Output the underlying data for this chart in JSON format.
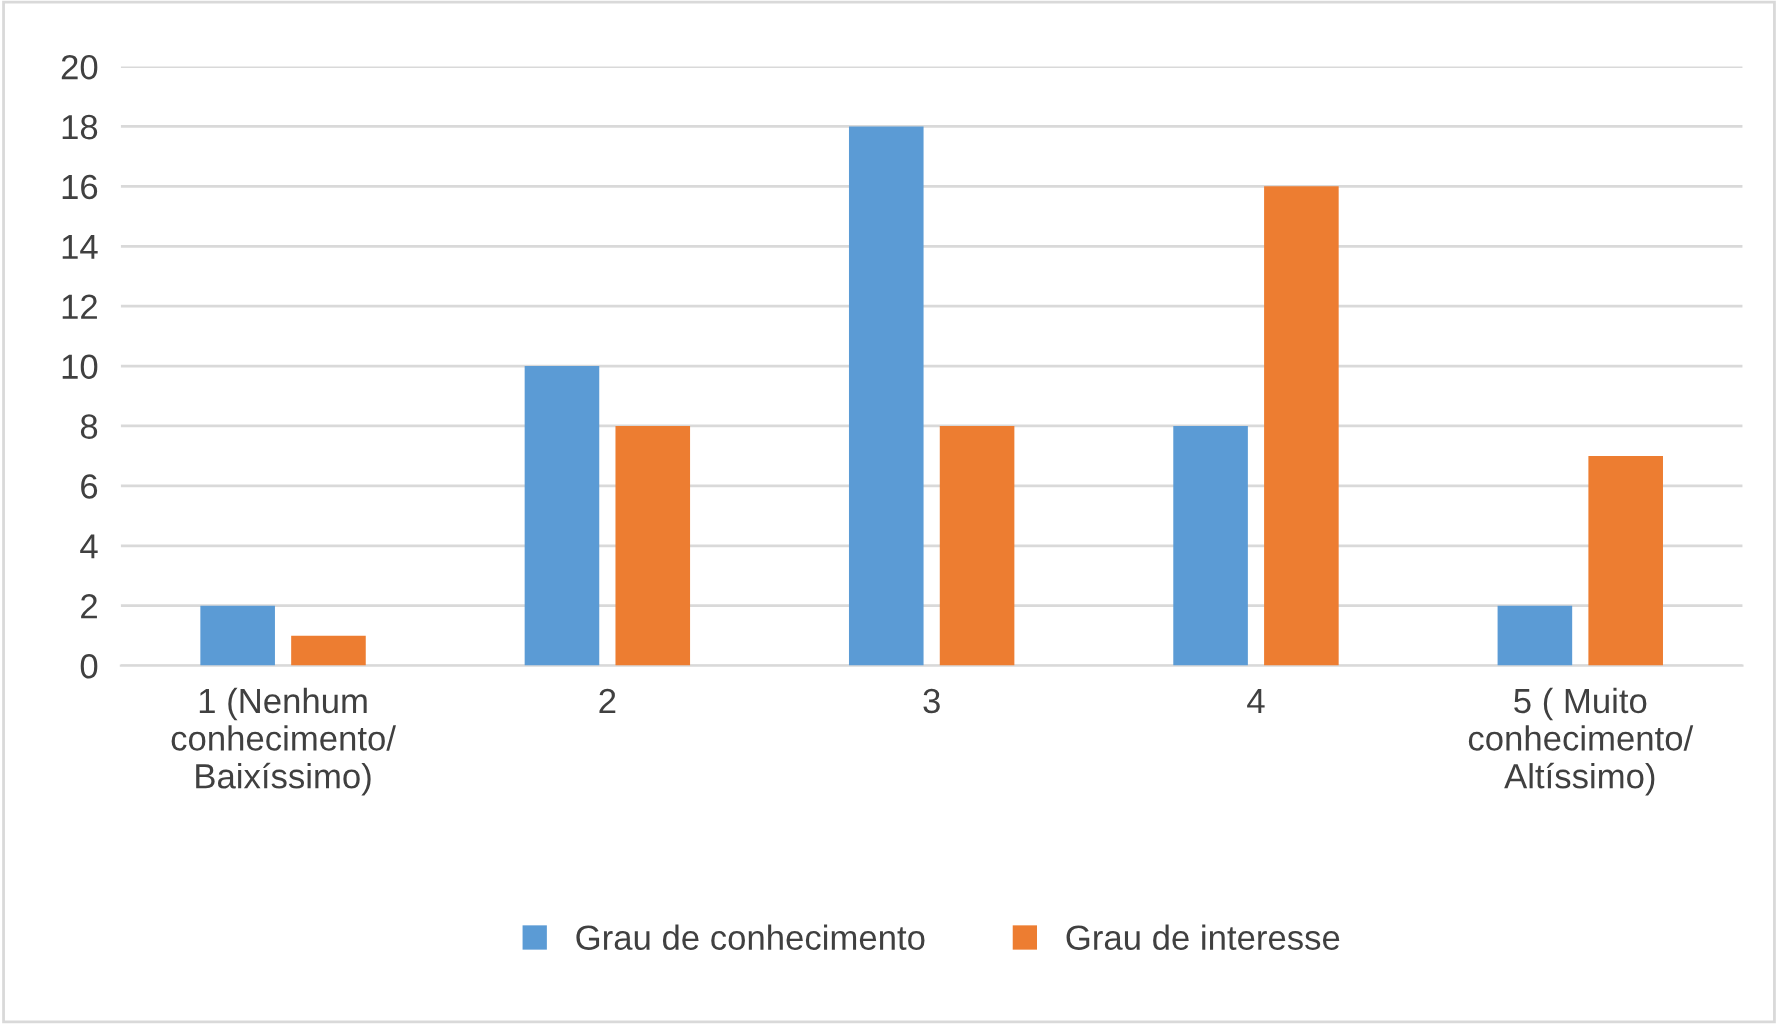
{
  "chart_data": {
    "type": "bar",
    "categories": [
      "1 (Nenhum\nconhecimento/\nBaixíssimo)",
      "2",
      "3",
      "4",
      "5 ( Muito\nconhecimento/\nAltíssimo)"
    ],
    "series": [
      {
        "name": "Grau de conhecimento",
        "color": "#5b9bd5",
        "values": [
          2,
          10,
          18,
          8,
          2
        ]
      },
      {
        "name": "Grau de interesse",
        "color": "#ed7d31",
        "values": [
          1,
          8,
          8,
          16,
          7
        ]
      }
    ],
    "ylim": [
      0,
      20
    ],
    "yticks": [
      0,
      2,
      4,
      6,
      8,
      10,
      12,
      14,
      16,
      18,
      20
    ],
    "grid": "y",
    "legend": "bottom"
  }
}
